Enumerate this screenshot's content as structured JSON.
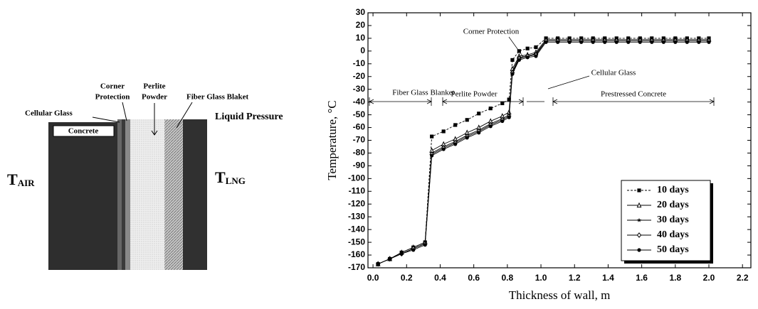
{
  "diagram": {
    "corner_protection": [
      "Corner",
      "Protection"
    ],
    "perlite_powder": [
      "Perlite",
      "Powder"
    ],
    "cellular_glass": "Cellular Glass",
    "fiber_glass": "Fiber Glass Blaket",
    "concrete": "Concrete",
    "liquid_pressure": "Liquid Pressure",
    "t_air": {
      "main": "T",
      "sub": "AIR"
    },
    "t_lng": {
      "main": "T",
      "sub": "LNG"
    }
  },
  "chart_data": {
    "type": "line",
    "xlabel": "Thickness of wall, m",
    "ylabel": "Temperature, °C",
    "xlim": [
      -0.03,
      2.25
    ],
    "ylim": [
      -170,
      30
    ],
    "xticks": [
      {
        "value": 0,
        "label": "0.0"
      },
      0.2,
      0.4,
      0.6,
      0.8,
      {
        "value": 1,
        "label": "1.0"
      },
      1.2,
      1.4,
      1.6,
      1.8,
      {
        "value": 2,
        "label": "2.0"
      },
      2.2
    ],
    "yticks": [
      30,
      20,
      10,
      0,
      -10,
      -20,
      -30,
      -40,
      -50,
      -60,
      -70,
      -80,
      -90,
      -100,
      -110,
      -120,
      -130,
      -140,
      -150,
      -160,
      -170
    ],
    "legend": "lower right",
    "annotations": [
      "Fiber Glass Blanket",
      "Perlite Powder",
      "Corner Protection",
      "Cellular Glass",
      "Prestressed Concrete"
    ],
    "x": [
      0.03,
      0.1,
      0.17,
      0.24,
      0.31,
      0.35,
      0.42,
      0.49,
      0.56,
      0.63,
      0.7,
      0.77,
      0.81,
      0.83,
      0.87,
      0.92,
      0.97,
      1.03,
      1.1,
      1.17,
      1.24,
      1.31,
      1.38,
      1.45,
      1.52,
      1.59,
      1.66,
      1.73,
      1.8,
      1.87,
      1.94,
      2.0
    ],
    "series": [
      {
        "name": "10 days",
        "color": "#000000",
        "marker": "square",
        "dashed": true,
        "values": [
          -167,
          -163,
          -158,
          -154,
          -150,
          -67,
          -63,
          -58,
          -54,
          -49,
          -45,
          -41,
          -38,
          -7,
          0,
          2,
          3,
          10,
          10,
          10,
          10,
          10,
          10,
          10,
          10,
          10,
          10,
          10,
          10,
          10,
          10,
          10
        ]
      },
      {
        "name": "20 days",
        "color": "#000000",
        "marker": "triangle",
        "values": [
          -167,
          -163,
          -158,
          -154,
          -150,
          -78,
          -73,
          -69,
          -64,
          -60,
          -55,
          -51,
          -48,
          -14,
          -4,
          -3,
          -1,
          9,
          9,
          9,
          9,
          9,
          9,
          9,
          9,
          9,
          9,
          9,
          9,
          9,
          9,
          9
        ]
      },
      {
        "name": "30 days",
        "color": "#000000",
        "marker": "star",
        "values": [
          -167,
          -163,
          -159,
          -155,
          -151,
          -80,
          -75,
          -71,
          -66,
          -62,
          -57,
          -53,
          -50,
          -16,
          -5,
          -4,
          -2,
          8,
          8,
          8,
          8,
          8,
          8,
          8,
          8,
          8,
          8,
          8,
          8,
          8,
          8,
          8
        ]
      },
      {
        "name": "40 days",
        "color": "#000000",
        "marker": "diamond",
        "values": [
          -167,
          -163,
          -159,
          -155,
          -151,
          -81,
          -76,
          -72,
          -67,
          -63,
          -58,
          -54,
          -51,
          -17,
          -6,
          -4,
          -3,
          8,
          8,
          8,
          8,
          8,
          8,
          8,
          8,
          8,
          8,
          8,
          8,
          8,
          8,
          8
        ]
      },
      {
        "name": "50 days",
        "color": "#000000",
        "marker": "circle",
        "values": [
          -167,
          -163,
          -159,
          -156,
          -152,
          -82,
          -77,
          -73,
          -68,
          -64,
          -59,
          -55,
          -52,
          -18,
          -7,
          -5,
          -4,
          7,
          7,
          7,
          7,
          7,
          7,
          7,
          7,
          7,
          7,
          7,
          7,
          7,
          7,
          7
        ]
      }
    ]
  }
}
